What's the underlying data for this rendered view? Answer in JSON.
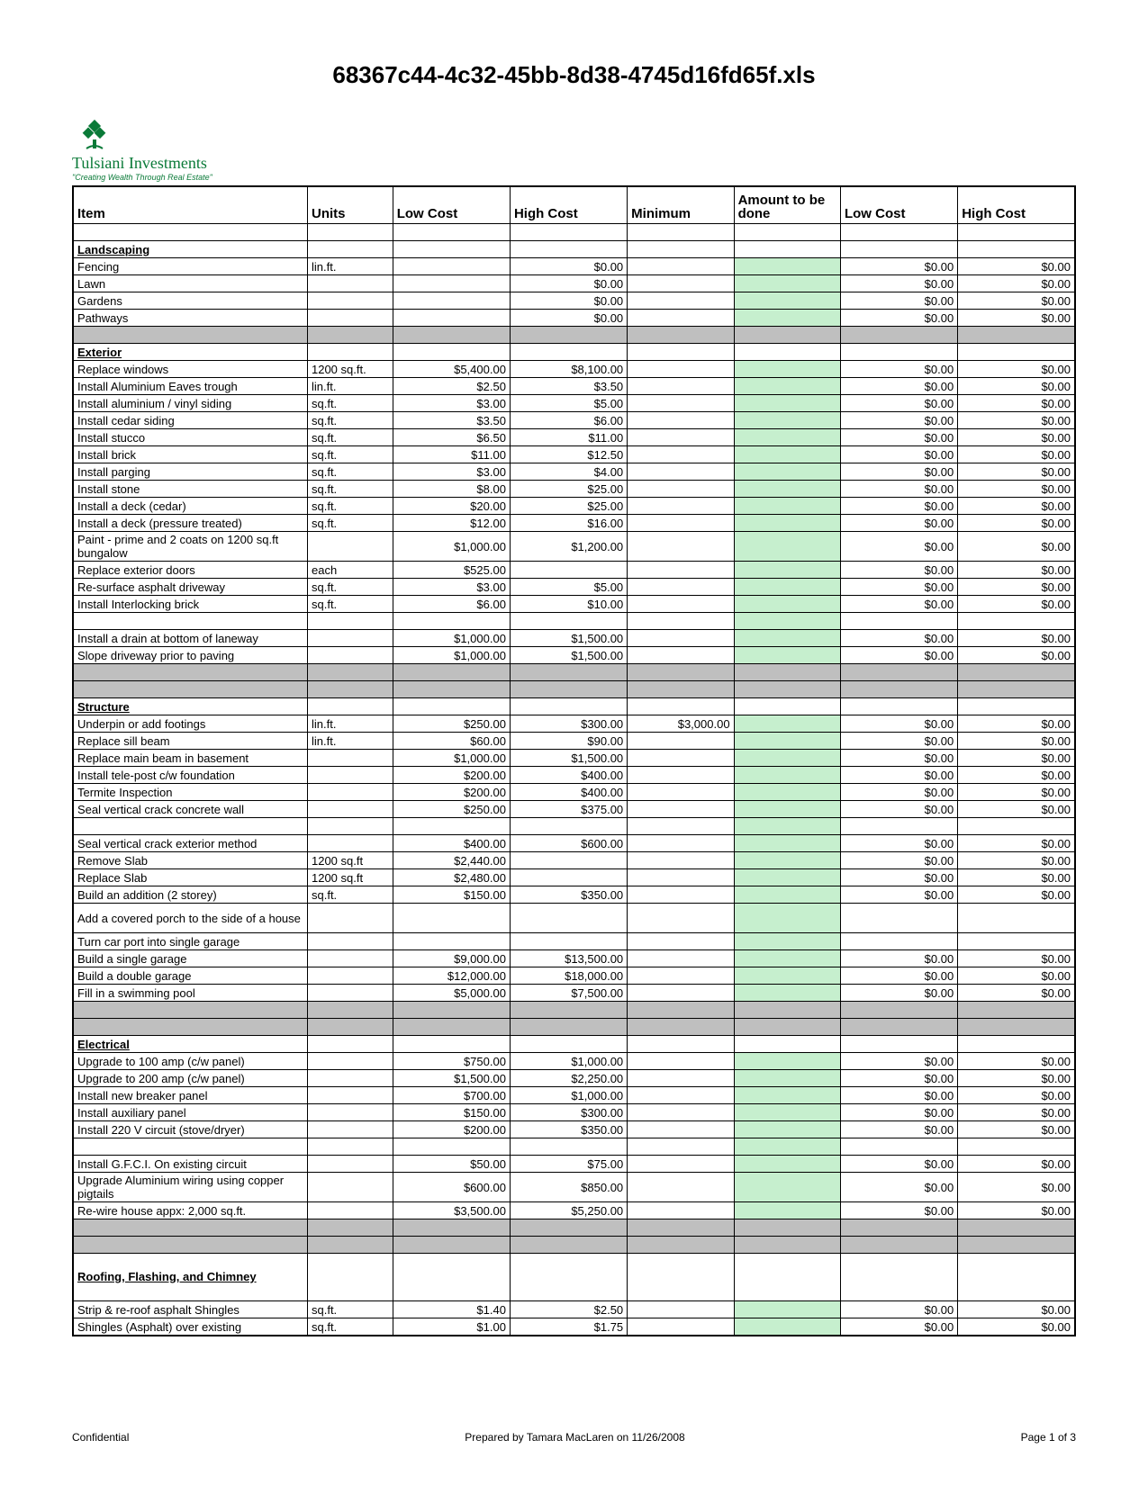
{
  "title": "68367c44-4c32-45bb-8d38-4745d16fd65f.xls",
  "logo": {
    "company": "Tulsiani Investments",
    "tag": "\"Creating Wealth Through Real Estate\"",
    "color": "#0a7a38"
  },
  "columns": [
    "Item",
    "Units",
    "Low Cost",
    "High Cost",
    "Minimum",
    "Amount to be done",
    "Low Cost",
    "High Cost"
  ],
  "colors": {
    "spacer": "#bfbfbf",
    "highlight": "#c6efce",
    "border": "#000000"
  },
  "footer": {
    "left": "Confidential",
    "center": "Prepared by Tamara MacLaren on 11/26/2008",
    "right": "Page 1 of 3"
  },
  "rows": [
    {
      "t": "blank"
    },
    {
      "t": "section",
      "item": "Landscaping"
    },
    {
      "t": "data",
      "item": "Fencing",
      "units": "lin.ft.",
      "low": "",
      "high": "$0.00",
      "min": "",
      "amt": "",
      "low2": "$0.00",
      "high2": "$0.00",
      "g": true
    },
    {
      "t": "data",
      "item": "Lawn",
      "units": "",
      "low": "",
      "high": "$0.00",
      "min": "",
      "amt": "",
      "low2": "$0.00",
      "high2": "$0.00",
      "g": true
    },
    {
      "t": "data",
      "item": "Gardens",
      "units": "",
      "low": "",
      "high": "$0.00",
      "min": "",
      "amt": "",
      "low2": "$0.00",
      "high2": "$0.00",
      "g": true
    },
    {
      "t": "data",
      "item": "Pathways",
      "units": "",
      "low": "",
      "high": "$0.00",
      "min": "",
      "amt": "",
      "low2": "$0.00",
      "high2": "$0.00",
      "g": true
    },
    {
      "t": "spacer"
    },
    {
      "t": "section",
      "item": "Exterior"
    },
    {
      "t": "data",
      "item": "Replace windows",
      "units": "1200 sq.ft.",
      "low": "$5,400.00",
      "high": "$8,100.00",
      "min": "",
      "amt": "",
      "low2": "$0.00",
      "high2": "$0.00",
      "g": true
    },
    {
      "t": "data",
      "item": "Install Aluminium Eaves trough",
      "units": "lin.ft.",
      "low": "$2.50",
      "high": "$3.50",
      "min": "",
      "amt": "",
      "low2": "$0.00",
      "high2": "$0.00",
      "g": true
    },
    {
      "t": "data",
      "item": "Install aluminium / vinyl siding",
      "units": "sq.ft.",
      "low": "$3.00",
      "high": "$5.00",
      "min": "",
      "amt": "",
      "low2": "$0.00",
      "high2": "$0.00",
      "g": true
    },
    {
      "t": "data",
      "item": "Install cedar siding",
      "units": "sq.ft.",
      "low": "$3.50",
      "high": "$6.00",
      "min": "",
      "amt": "",
      "low2": "$0.00",
      "high2": "$0.00",
      "g": true
    },
    {
      "t": "data",
      "item": "Install stucco",
      "units": "sq.ft.",
      "low": "$6.50",
      "high": "$11.00",
      "min": "",
      "amt": "",
      "low2": "$0.00",
      "high2": "$0.00",
      "g": true
    },
    {
      "t": "data",
      "item": "Install brick",
      "units": "sq.ft.",
      "low": "$11.00",
      "high": "$12.50",
      "min": "",
      "amt": "",
      "low2": "$0.00",
      "high2": "$0.00",
      "g": true
    },
    {
      "t": "data",
      "item": "Install parging",
      "units": "sq.ft.",
      "low": "$3.00",
      "high": "$4.00",
      "min": "",
      "amt": "",
      "low2": "$0.00",
      "high2": "$0.00",
      "g": true
    },
    {
      "t": "data",
      "item": "Install stone",
      "units": "sq.ft.",
      "low": "$8.00",
      "high": "$25.00",
      "min": "",
      "amt": "",
      "low2": "$0.00",
      "high2": "$0.00",
      "g": true
    },
    {
      "t": "data",
      "item": "Install a deck (cedar)",
      "units": "sq.ft.",
      "low": "$20.00",
      "high": "$25.00",
      "min": "",
      "amt": "",
      "low2": "$0.00",
      "high2": "$0.00",
      "g": true
    },
    {
      "t": "data",
      "item": "Install a deck (pressure treated)",
      "units": "sq.ft.",
      "low": "$12.00",
      "high": "$16.00",
      "min": "",
      "amt": "",
      "low2": "$0.00",
      "high2": "$0.00",
      "g": true
    },
    {
      "t": "data",
      "item": "Paint - prime and 2 coats on 1200 sq.ft bungalow",
      "wrap": true,
      "units": "",
      "low": "$1,000.00",
      "high": "$1,200.00",
      "min": "",
      "amt": "",
      "low2": "$0.00",
      "high2": "$0.00",
      "g": true
    },
    {
      "t": "data",
      "item": "Replace exterior doors",
      "units": "each",
      "low": "$525.00",
      "high": "",
      "min": "",
      "amt": "",
      "low2": "$0.00",
      "high2": "$0.00",
      "g": true
    },
    {
      "t": "data",
      "item": "Re-surface asphalt driveway",
      "units": "sq.ft.",
      "low": "$3.00",
      "high": "$5.00",
      "min": "",
      "amt": "",
      "low2": "$0.00",
      "high2": "$0.00",
      "g": true
    },
    {
      "t": "data",
      "item": "Install Interlocking brick",
      "units": "sq.ft.",
      "low": "$6.00",
      "high": "$10.00",
      "min": "",
      "amt": "",
      "low2": "$0.00",
      "high2": "$0.00",
      "g": true
    },
    {
      "t": "blank",
      "g": true
    },
    {
      "t": "data",
      "item": "Install a drain at bottom of laneway",
      "units": "",
      "low": "$1,000.00",
      "high": "$1,500.00",
      "min": "",
      "amt": "",
      "low2": "$0.00",
      "high2": "$0.00",
      "g": true
    },
    {
      "t": "data",
      "item": "Slope driveway prior to paving",
      "units": "",
      "low": "$1,000.00",
      "high": "$1,500.00",
      "min": "",
      "amt": "",
      "low2": "$0.00",
      "high2": "$0.00",
      "g": true
    },
    {
      "t": "spacer"
    },
    {
      "t": "spacer"
    },
    {
      "t": "section",
      "item": "Structure"
    },
    {
      "t": "data",
      "item": "Underpin or add footings",
      "units": "lin.ft.",
      "low": "$250.00",
      "high": "$300.00",
      "min": "$3,000.00",
      "amt": "",
      "low2": "$0.00",
      "high2": "$0.00",
      "g": true
    },
    {
      "t": "data",
      "item": "Replace sill beam",
      "units": "lin.ft.",
      "low": "$60.00",
      "high": "$90.00",
      "min": "",
      "amt": "",
      "low2": "$0.00",
      "high2": "$0.00",
      "g": true
    },
    {
      "t": "data",
      "item": "Replace main beam in basement",
      "units": "",
      "low": "$1,000.00",
      "high": "$1,500.00",
      "min": "",
      "amt": "",
      "low2": "$0.00",
      "high2": "$0.00",
      "g": true
    },
    {
      "t": "data",
      "item": "Install tele-post c/w foundation",
      "units": "",
      "low": "$200.00",
      "high": "$400.00",
      "min": "",
      "amt": "",
      "low2": "$0.00",
      "high2": "$0.00",
      "g": true
    },
    {
      "t": "data",
      "item": "Termite Inspection",
      "units": "",
      "low": "$200.00",
      "high": "$400.00",
      "min": "",
      "amt": "",
      "low2": "$0.00",
      "high2": "$0.00",
      "g": true
    },
    {
      "t": "data",
      "item": "Seal vertical crack concrete wall",
      "units": "",
      "low": "$250.00",
      "high": "$375.00",
      "min": "",
      "amt": "",
      "low2": "$0.00",
      "high2": "$0.00",
      "g": true
    },
    {
      "t": "blank",
      "g": true
    },
    {
      "t": "data",
      "item": "Seal vertical crack exterior method",
      "units": "",
      "low": "$400.00",
      "high": "$600.00",
      "min": "",
      "amt": "",
      "low2": "$0.00",
      "high2": "$0.00",
      "g": true
    },
    {
      "t": "data",
      "item": "Remove Slab",
      "units": "1200 sq.ft",
      "low": "$2,440.00",
      "high": "",
      "min": "",
      "amt": "",
      "low2": "$0.00",
      "high2": "$0.00",
      "g": true
    },
    {
      "t": "data",
      "item": "Replace Slab",
      "units": "1200 sq.ft",
      "low": "$2,480.00",
      "high": "",
      "min": "",
      "amt": "",
      "low2": "$0.00",
      "high2": "$0.00",
      "g": true
    },
    {
      "t": "data",
      "item": "Build an addition (2 storey)",
      "units": "sq.ft.",
      "low": "$150.00",
      "high": "$350.00",
      "min": "",
      "amt": "",
      "low2": "$0.00",
      "high2": "$0.00",
      "g": true
    },
    {
      "t": "data",
      "item": "Add a covered porch to the side of a house",
      "wrap": true,
      "units": "",
      "low": "",
      "high": "",
      "min": "",
      "amt": "",
      "low2": "",
      "high2": "",
      "g": true
    },
    {
      "t": "data",
      "item": "Turn car port into single garage",
      "units": "",
      "low": "",
      "high": "",
      "min": "",
      "amt": "",
      "low2": "",
      "high2": "",
      "g": true
    },
    {
      "t": "data",
      "item": "Build a single garage",
      "units": "",
      "low": "$9,000.00",
      "high": "$13,500.00",
      "min": "",
      "amt": "",
      "low2": "$0.00",
      "high2": "$0.00",
      "g": true
    },
    {
      "t": "data",
      "item": "Build a double garage",
      "units": "",
      "low": "$12,000.00",
      "high": "$18,000.00",
      "min": "",
      "amt": "",
      "low2": "$0.00",
      "high2": "$0.00",
      "g": true
    },
    {
      "t": "data",
      "item": "Fill in a swimming pool",
      "units": "",
      "low": "$5,000.00",
      "high": "$7,500.00",
      "min": "",
      "amt": "",
      "low2": "$0.00",
      "high2": "$0.00",
      "g": true
    },
    {
      "t": "spacer"
    },
    {
      "t": "spacer"
    },
    {
      "t": "section",
      "item": "Electrical"
    },
    {
      "t": "data",
      "item": "Upgrade to 100 amp (c/w panel)",
      "units": "",
      "low": "$750.00",
      "high": "$1,000.00",
      "min": "",
      "amt": "",
      "low2": "$0.00",
      "high2": "$0.00",
      "g": true
    },
    {
      "t": "data",
      "item": "Upgrade to 200 amp (c/w panel)",
      "units": "",
      "low": "$1,500.00",
      "high": "$2,250.00",
      "min": "",
      "amt": "",
      "low2": "$0.00",
      "high2": "$0.00",
      "g": true
    },
    {
      "t": "data",
      "item": "Install new breaker panel",
      "units": "",
      "low": "$700.00",
      "high": "$1,000.00",
      "min": "",
      "amt": "",
      "low2": "$0.00",
      "high2": "$0.00",
      "g": true
    },
    {
      "t": "data",
      "item": "Install auxiliary panel",
      "units": "",
      "low": "$150.00",
      "high": "$300.00",
      "min": "",
      "amt": "",
      "low2": "$0.00",
      "high2": "$0.00",
      "g": true
    },
    {
      "t": "data",
      "item": "Install 220 V circuit (stove/dryer)",
      "units": "",
      "low": "$200.00",
      "high": "$350.00",
      "min": "",
      "amt": "",
      "low2": "$0.00",
      "high2": "$0.00",
      "g": true
    },
    {
      "t": "blank",
      "g": true
    },
    {
      "t": "data",
      "item": "Install G.F.C.I. On existing circuit",
      "units": "",
      "low": "$50.00",
      "high": "$75.00",
      "min": "",
      "amt": "",
      "low2": "$0.00",
      "high2": "$0.00",
      "g": true
    },
    {
      "t": "data",
      "item": "Upgrade Aluminium wiring using copper pigtails",
      "wrap": true,
      "units": "",
      "low": "$600.00",
      "high": "$850.00",
      "min": "",
      "amt": "",
      "low2": "$0.00",
      "high2": "$0.00",
      "g": true
    },
    {
      "t": "data",
      "item": "Re-wire house appx: 2,000 sq.ft.",
      "units": "",
      "low": "$3,500.00",
      "high": "$5,250.00",
      "min": "",
      "amt": "",
      "low2": "$0.00",
      "high2": "$0.00",
      "g": true
    },
    {
      "t": "spacer"
    },
    {
      "t": "spacer"
    },
    {
      "t": "section",
      "item": "Roofing, Flashing, and Chimney",
      "wrap": true,
      "tall": true
    },
    {
      "t": "data",
      "item": "Strip & re-roof asphalt Shingles",
      "units": "sq.ft.",
      "low": "$1.40",
      "high": "$2.50",
      "min": "",
      "amt": "",
      "low2": "$0.00",
      "high2": "$0.00",
      "g": true
    },
    {
      "t": "data",
      "item": "Shingles (Asphalt) over existing",
      "units": "sq.ft.",
      "low": "$1.00",
      "high": "$1.75",
      "min": "",
      "amt": "",
      "low2": "$0.00",
      "high2": "$0.00",
      "g": true
    }
  ]
}
